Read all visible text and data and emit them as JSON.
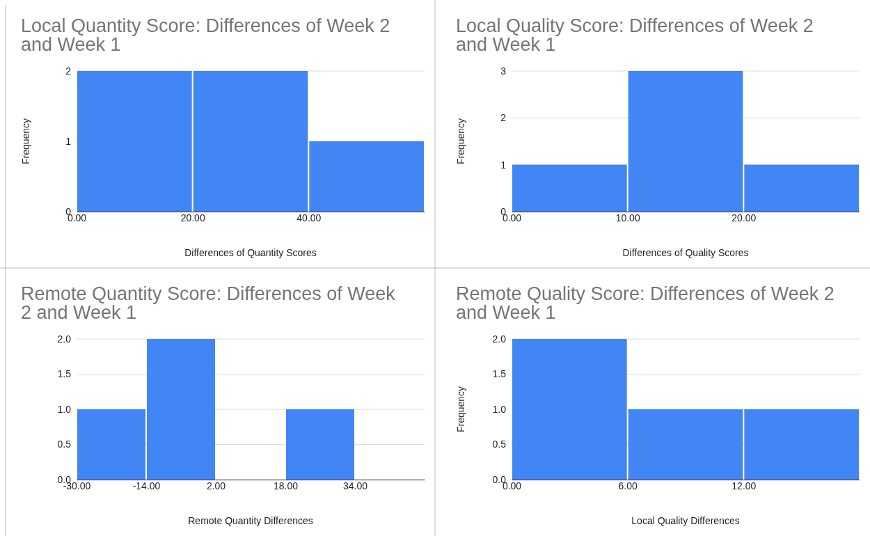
{
  "chart_data": [
    {
      "type": "histogram",
      "title": "Local Quantity Score: Differences of Week 2 and Week 1",
      "xlabel": "Differences of Quantity Scores",
      "ylabel": "Frequency",
      "bins": [
        0,
        20,
        40,
        60
      ],
      "values": [
        2,
        2,
        1
      ],
      "color": "#4285f4",
      "xlim": [
        0,
        60
      ],
      "xticks": [
        {
          "value": 0,
          "label": "0.00"
        },
        {
          "value": 20,
          "label": "20.00"
        },
        {
          "value": 40,
          "label": "40.00"
        }
      ],
      "ylim": [
        0,
        2
      ],
      "yticks": [
        0,
        1,
        2
      ],
      "grid": "y"
    },
    {
      "type": "histogram",
      "title": "Local Quality Score: Differences of Week 2 and Week 1",
      "xlabel": "Differences of Quality Scores",
      "ylabel": "Frequency",
      "bins": [
        0,
        10,
        20,
        30
      ],
      "values": [
        1,
        3,
        1
      ],
      "color": "#4285f4",
      "xlim": [
        0,
        30
      ],
      "xticks": [
        {
          "value": 0,
          "label": "0.00"
        },
        {
          "value": 10,
          "label": "10.00"
        },
        {
          "value": 20,
          "label": "20.00"
        }
      ],
      "ylim": [
        0,
        3
      ],
      "yticks": [
        0,
        1,
        2,
        3
      ],
      "grid": "y"
    },
    {
      "type": "histogram",
      "title": "Remote Quantity Score: Differences of Week 2 and Week 1",
      "xlabel": "Remote Quantity Differences",
      "bins": [
        -30,
        -14,
        2,
        18,
        34,
        50
      ],
      "values": [
        1,
        2,
        0,
        1,
        0
      ],
      "color": "#4285f4",
      "xlim": [
        -30,
        50
      ],
      "xticks": [
        {
          "value": -30,
          "label": "-30.00"
        },
        {
          "value": -14,
          "label": "-14.00"
        },
        {
          "value": 2,
          "label": "2.00"
        },
        {
          "value": 18,
          "label": "18.00"
        },
        {
          "value": 34,
          "label": "34.00"
        }
      ],
      "ylim": [
        0,
        2
      ],
      "yticks": [
        {
          "value": 0,
          "label": "0.0"
        },
        {
          "value": 0.5,
          "label": "0.5"
        },
        {
          "value": 1,
          "label": "1.0"
        },
        {
          "value": 1.5,
          "label": "1.5"
        },
        {
          "value": 2,
          "label": "2.0"
        }
      ],
      "grid": "y"
    },
    {
      "type": "histogram",
      "title": "Remote Quality Score: Differences of Week 2 and Week 1",
      "xlabel": "Local Quality Differences",
      "ylabel": "Frequency",
      "bins": [
        0,
        6,
        12,
        18
      ],
      "values": [
        2,
        1,
        1
      ],
      "color": "#4285f4",
      "xlim": [
        0,
        18
      ],
      "xticks": [
        {
          "value": 0,
          "label": "0.00"
        },
        {
          "value": 6,
          "label": "6.00"
        },
        {
          "value": 12,
          "label": "12.00"
        }
      ],
      "ylim": [
        0,
        2
      ],
      "yticks": [
        {
          "value": 0,
          "label": "0.0"
        },
        {
          "value": 0.5,
          "label": "0.5"
        },
        {
          "value": 1,
          "label": "1.0"
        },
        {
          "value": 1.5,
          "label": "1.5"
        },
        {
          "value": 2,
          "label": "2.0"
        }
      ],
      "grid": "y"
    }
  ]
}
